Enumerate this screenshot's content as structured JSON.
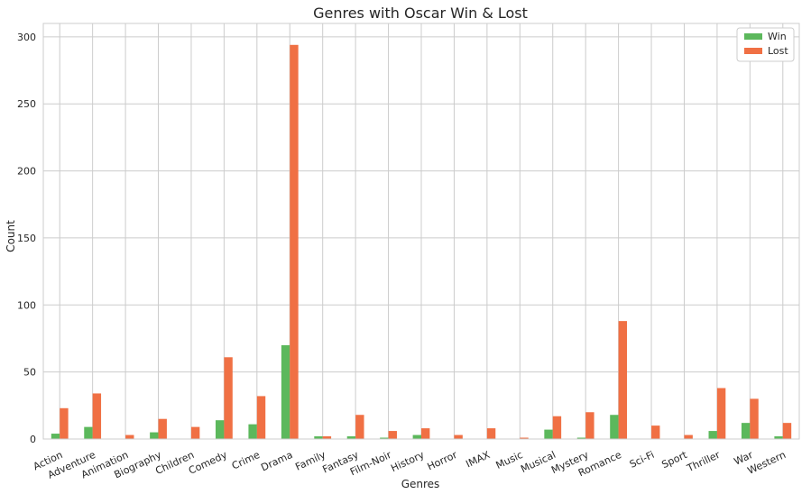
{
  "chart_data": {
    "type": "bar",
    "title": "Genres with Oscar Win & Lost",
    "xlabel": "Genres",
    "ylabel": "Count",
    "ylim": [
      0,
      310
    ],
    "yticks": [
      0,
      50,
      100,
      150,
      200,
      250,
      300
    ],
    "grid": true,
    "legend_position": "top-right",
    "categories": [
      "Action",
      "Adventure",
      "Animation",
      "Biography",
      "Children",
      "Comedy",
      "Crime",
      "Drama",
      "Family",
      "Fantasy",
      "Film-Noir",
      "History",
      "Horror",
      "IMAX",
      "Music",
      "Musical",
      "Mystery",
      "Romance",
      "Sci-Fi",
      "Sport",
      "Thriller",
      "War",
      "Western"
    ],
    "series": [
      {
        "name": "Win",
        "color": "#5cb85c",
        "values": [
          4,
          9,
          0,
          5,
          0,
          14,
          11,
          70,
          2,
          2,
          1,
          3,
          0,
          0,
          0,
          7,
          1,
          18,
          0,
          0,
          6,
          12,
          2
        ]
      },
      {
        "name": "Lost",
        "color": "#f07044",
        "values": [
          23,
          34,
          3,
          15,
          9,
          61,
          32,
          294,
          2,
          18,
          6,
          8,
          3,
          8,
          1,
          17,
          20,
          88,
          10,
          3,
          38,
          30,
          12
        ]
      }
    ]
  }
}
